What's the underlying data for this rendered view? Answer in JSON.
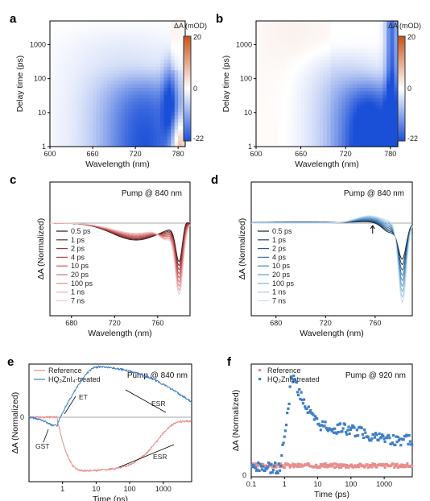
{
  "colors": {
    "neg": "#1a4fd8",
    "pos": "#c8541a",
    "mid": "#ffffff",
    "red_series": "#e88d8d",
    "blue_series": "#3f7fc6",
    "zero_line": "#888888"
  },
  "chart_data": [
    {
      "panel": "a",
      "type": "heatmap",
      "xlabel": "Wavelength (nm)",
      "ylabel": "Delay time (ps)",
      "xlim": [
        600,
        790
      ],
      "ylim": [
        1,
        5000
      ],
      "yscale": "log",
      "xticks": [
        "600",
        "660",
        "720",
        "780"
      ],
      "yticks": [
        "1",
        "10",
        "100",
        "1000"
      ],
      "colorbar": {
        "title": "ΔA (mOD)",
        "max_label": "20",
        "mid_label": "0",
        "min_label": "-22",
        "vmin": -22,
        "vmax": 20
      }
    },
    {
      "panel": "b",
      "type": "heatmap",
      "xlabel": "Wavelength (nm)",
      "ylabel": "Delay time (ps)",
      "xlim": [
        600,
        790
      ],
      "ylim": [
        1,
        5000
      ],
      "yscale": "log",
      "xticks": [
        "600",
        "660",
        "720",
        "780"
      ],
      "yticks": [
        "1",
        "10",
        "100",
        "1000"
      ],
      "colorbar": {
        "title": "ΔA (mOD)",
        "max_label": "20",
        "mid_label": "0",
        "min_label": "-22",
        "vmin": -22,
        "vmax": 20
      }
    },
    {
      "panel": "c",
      "type": "line",
      "annotation": "Pump @ 840 nm",
      "xlabel": "Wavelength (nm)",
      "ylabel": "ΔA (Normalized)",
      "xlim": [
        660,
        790
      ],
      "xticks": [
        "680",
        "720",
        "760"
      ],
      "series": [
        {
          "name": "0.5 ps"
        },
        {
          "name": "1 ps"
        },
        {
          "name": "2 ps"
        },
        {
          "name": "4 ps"
        },
        {
          "name": "10 ps"
        },
        {
          "name": "20 ps"
        },
        {
          "name": "100 ps"
        },
        {
          "name": "1 ns"
        },
        {
          "name": "7 ns"
        }
      ]
    },
    {
      "panel": "d",
      "type": "line",
      "annotation": "Pump @ 840 nm",
      "xlabel": "Wavelength (nm)",
      "ylabel": "ΔA (Normalized)",
      "xlim": [
        660,
        790
      ],
      "xticks": [
        "680",
        "720",
        "760"
      ],
      "series": [
        {
          "name": "0.5 ps"
        },
        {
          "name": "1 ps"
        },
        {
          "name": "2 ps"
        },
        {
          "name": "4 ps"
        },
        {
          "name": "10 ps"
        },
        {
          "name": "20 ps"
        },
        {
          "name": "100 ps"
        },
        {
          "name": "1 ns"
        },
        {
          "name": "7 ns"
        }
      ]
    },
    {
      "panel": "e",
      "type": "line",
      "annotation": "Pump @ 840 nm",
      "xlabel": "Time (ps)",
      "ylabel": "ΔA (Normalized)",
      "xscale": "log",
      "xticks": [
        "1",
        "10",
        "100",
        "1000"
      ],
      "yticks": [
        "0"
      ],
      "series": [
        {
          "name": "Reference"
        },
        {
          "name": "HQ₂ZnI₄-treated"
        }
      ],
      "labels": [
        "GST",
        "ET",
        "ESR",
        "ESR"
      ]
    },
    {
      "panel": "f",
      "type": "scatter",
      "annotation": "Pump @ 920 nm",
      "xlabel": "Time (ps)",
      "ylabel": "ΔA (Normalized)",
      "xscale": "log",
      "xticks": [
        "0.1",
        "1",
        "10",
        "100",
        "1000"
      ],
      "yticks": [
        "0"
      ],
      "series": [
        {
          "name": "Reference"
        },
        {
          "name": "HQ₂ZnI₄-treated"
        }
      ]
    }
  ]
}
